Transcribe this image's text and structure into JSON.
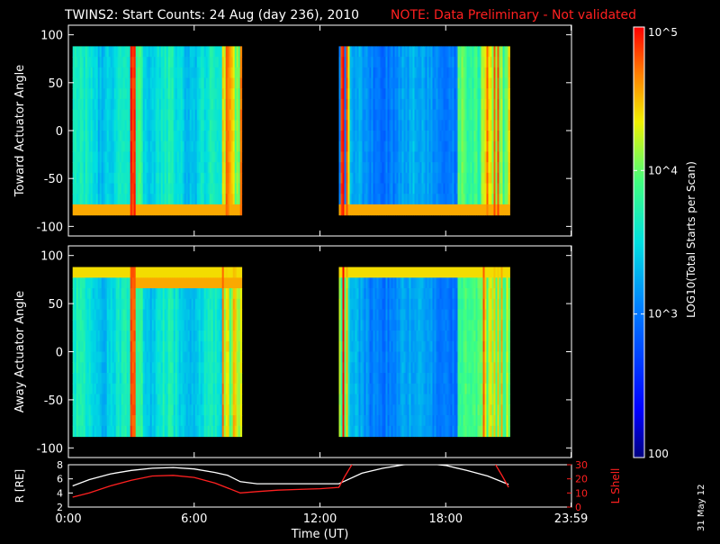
{
  "header": {
    "title": "TWINS2: Start Counts: 24 Aug (day 236), 2010",
    "note": "NOTE: Data Preliminary - Not validated",
    "note_color": "#ff2020"
  },
  "stamp": "31 May 12",
  "colorbar": {
    "label": "LOG10(Total Starts per Scan)",
    "ticks": [
      {
        "value": 100,
        "label": "100"
      },
      {
        "value": 1000,
        "label": "10^3"
      },
      {
        "value": 10000,
        "label": "10^4"
      },
      {
        "value": 100000,
        "label": "10^5"
      }
    ],
    "scale": "log",
    "range": [
      100,
      100000
    ]
  },
  "chart_data": [
    {
      "type": "heatmap",
      "ylabel": "Toward Actuator Angle",
      "xlim": [
        0,
        24
      ],
      "ylim": [
        -110,
        110
      ],
      "yticks": [
        -100,
        -50,
        0,
        50,
        100
      ],
      "y_data_range": [
        -88,
        88
      ],
      "data_intervals_hours": [
        [
          0.2,
          8.2
        ],
        [
          12.9,
          21.0
        ]
      ],
      "colorscale": "log",
      "color_range": [
        100,
        100000
      ]
    },
    {
      "type": "heatmap",
      "ylabel": "Away Actuator Angle",
      "xlim": [
        0,
        24
      ],
      "ylim": [
        -110,
        110
      ],
      "yticks": [
        -100,
        -50,
        0,
        50,
        100
      ],
      "y_data_range": [
        -88,
        88
      ],
      "data_intervals_hours": [
        [
          0.2,
          8.2
        ],
        [
          12.9,
          21.0
        ]
      ],
      "colorscale": "log",
      "color_range": [
        100,
        100000
      ]
    },
    {
      "type": "line",
      "xlabel": "Time (UT)",
      "xticks": [
        {
          "h": 0,
          "label": "0:00"
        },
        {
          "h": 6,
          "label": "6:00"
        },
        {
          "h": 12,
          "label": "12:00"
        },
        {
          "h": 18,
          "label": "18:00"
        },
        {
          "h": 23.98,
          "label": "23:59"
        }
      ],
      "ylabel_left": "R [RE]",
      "ylabel_right": "L Shell",
      "ylim_left": [
        2,
        8
      ],
      "yticks_left": [
        2,
        4,
        6,
        8
      ],
      "ylim_right": [
        0,
        30
      ],
      "yticks_right": [
        0,
        10,
        20,
        30
      ],
      "series": [
        {
          "name": "R [RE]",
          "color": "#ffffff",
          "axis": "left",
          "x": [
            0.2,
            1,
            2,
            3,
            4,
            5,
            6,
            7,
            7.6,
            8.2,
            9,
            10,
            11,
            12,
            12.9,
            14,
            15,
            16,
            17,
            18,
            19,
            20,
            21
          ],
          "y": [
            5.0,
            5.9,
            6.7,
            7.2,
            7.5,
            7.6,
            7.4,
            6.9,
            6.5,
            5.6,
            5.3,
            5.3,
            5.3,
            5.3,
            5.3,
            6.8,
            7.5,
            8.0,
            8.2,
            7.9,
            7.2,
            6.4,
            5.2
          ]
        },
        {
          "name": "L Shell",
          "color": "#ff2020",
          "axis": "right",
          "x": [
            0.2,
            1,
            2,
            3,
            4,
            5,
            6,
            7,
            8.2,
            9,
            10,
            11,
            12,
            12.9,
            13.2,
            13.6,
            20.3,
            20.7,
            21
          ],
          "y": [
            7,
            10,
            15,
            19,
            22,
            22.5,
            21,
            17,
            10,
            11,
            12,
            12.5,
            13,
            14,
            22,
            32,
            32,
            22,
            14
          ]
        }
      ]
    }
  ]
}
